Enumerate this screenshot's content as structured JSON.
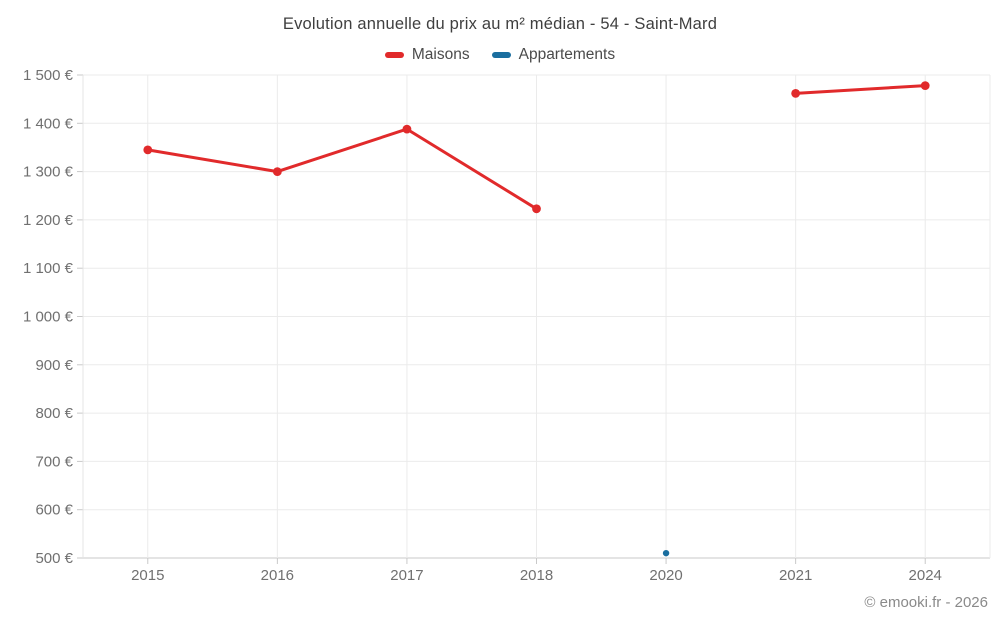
{
  "header": {
    "title": "Evolution annuelle du prix au m² médian - 54 - Saint-Mard"
  },
  "footer": {
    "credits": "© emooki.fr - 2026"
  },
  "colors": {
    "maisons": "#e12a2b",
    "appartements": "#1a6e9f",
    "grid": "#ebebeb",
    "axis": "#c9c9c9",
    "left_axis": "#e4e4e4",
    "tick_text": "#707070",
    "title_text": "#3f3f3f",
    "credits_text": "#8a8a8a"
  },
  "chart_data": {
    "type": "line",
    "title": "Evolution annuelle du prix au m² médian - 54 - Saint-Mard",
    "xlabel": "",
    "ylabel": "",
    "x_type": "category",
    "categories": [
      "2015",
      "2016",
      "2017",
      "2018",
      "2020",
      "2021",
      "2024"
    ],
    "series": [
      {
        "name": "Maisons",
        "color": "#e12a2b",
        "marker_radius": 4.4,
        "line_width": 3,
        "values": [
          1345,
          1300,
          1388,
          1223,
          null,
          1462,
          1478
        ]
      },
      {
        "name": "Appartements",
        "color": "#1a6e9f",
        "marker_radius": 3.2,
        "line_width": 3,
        "values": [
          null,
          null,
          null,
          null,
          510,
          null,
          null
        ]
      }
    ],
    "ylim": [
      500,
      1500
    ],
    "ytick_step": 100,
    "ytick_labels": [
      "500 €",
      "600 €",
      "700 €",
      "800 €",
      "900 €",
      "1 000 €",
      "1 100 €",
      "1 200 €",
      "1 300 €",
      "1 400 €",
      "1 500 €"
    ],
    "grid": true,
    "legend_position": "top"
  }
}
